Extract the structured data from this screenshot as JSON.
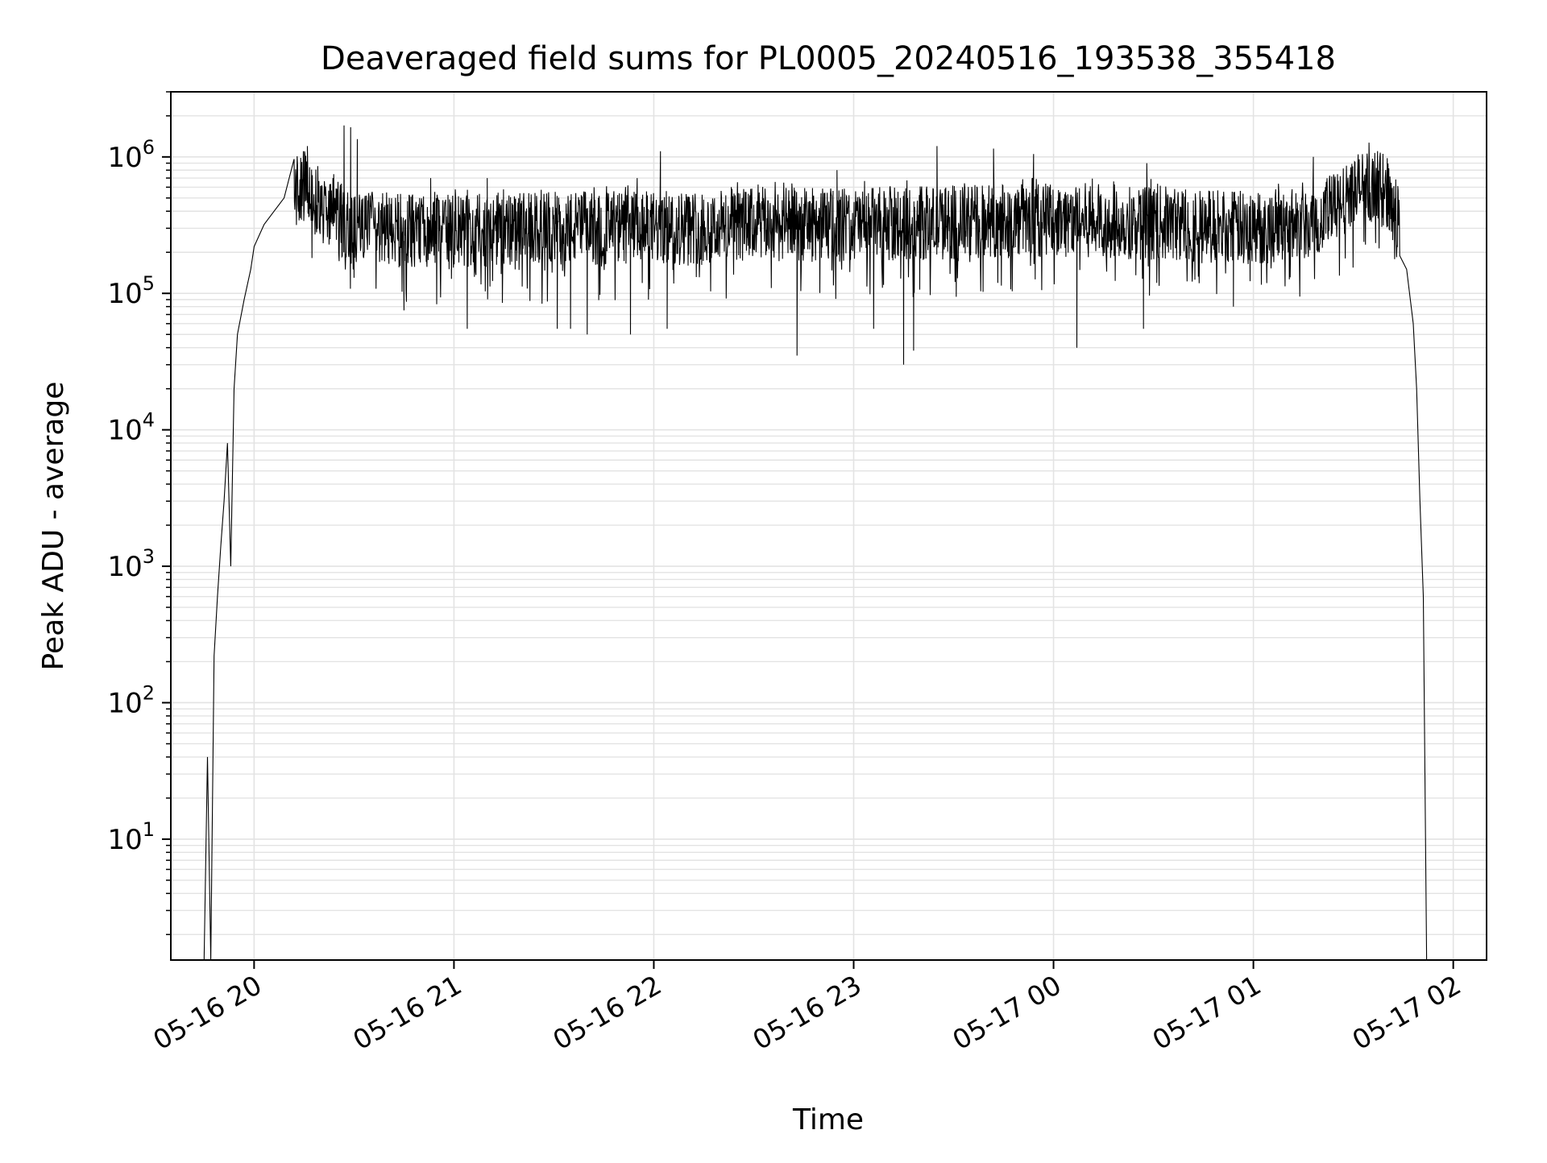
{
  "chart_data": {
    "type": "line",
    "title": "Deaveraged field sums for PL0005_20240516_193538_355418",
    "xlabel": "Time",
    "ylabel": "Peak ADU - average",
    "yscale": "log",
    "ylim": [
      1.3,
      3000000
    ],
    "xlim": [
      "2024-05-16 19:35",
      "2024-05-17 02:10"
    ],
    "grid": true,
    "grid_minor": true,
    "line_color": "#000000",
    "grid_color": "#e3e3e3",
    "x_ticks": [
      {
        "t": "2024-05-16 20:00",
        "label": "05-16 20"
      },
      {
        "t": "2024-05-16 21:00",
        "label": "05-16 21"
      },
      {
        "t": "2024-05-16 22:00",
        "label": "05-16 22"
      },
      {
        "t": "2024-05-16 23:00",
        "label": "05-16 23"
      },
      {
        "t": "2024-05-17 00:00",
        "label": "05-17 00"
      },
      {
        "t": "2024-05-17 01:00",
        "label": "05-17 01"
      },
      {
        "t": "2024-05-17 02:00",
        "label": "05-17 02"
      }
    ],
    "y_ticks": [
      {
        "v": 10,
        "base": "10",
        "exp": "1"
      },
      {
        "v": 100,
        "base": "10",
        "exp": "2"
      },
      {
        "v": 1000,
        "base": "10",
        "exp": "3"
      },
      {
        "v": 10000,
        "base": "10",
        "exp": "4"
      },
      {
        "v": 100000,
        "base": "10",
        "exp": "5"
      },
      {
        "v": 1000000,
        "base": "10",
        "exp": "6"
      }
    ],
    "series": [
      {
        "values": [
          [
            "2024-05-16 19:45",
            1.3
          ],
          [
            "2024-05-16 19:46",
            40
          ],
          [
            "2024-05-16 19:47",
            1.3
          ],
          [
            "2024-05-16 19:48",
            220
          ],
          [
            "2024-05-16 19:49",
            600
          ],
          [
            "2024-05-16 19:50",
            1400
          ],
          [
            "2024-05-16 19:51",
            3000
          ],
          [
            "2024-05-16 19:52",
            8000
          ],
          [
            "2024-05-16 19:53",
            1000
          ],
          [
            "2024-05-16 19:54",
            20000
          ],
          [
            "2024-05-16 19:55",
            50000
          ],
          [
            "2024-05-16 19:57",
            90000
          ],
          [
            "2024-05-16 19:59",
            150000
          ],
          [
            "2024-05-16 20:00",
            220000
          ],
          [
            "2024-05-16 20:03",
            320000
          ],
          [
            "2024-05-16 20:06",
            400000
          ],
          [
            "2024-05-16 20:09",
            500000
          ],
          [
            "2024-05-16 20:12",
            550000
          ],
          [
            "2024-05-16 20:15",
            600000
          ],
          [
            "2024-05-16 20:18",
            480000
          ],
          [
            "2024-05-16 20:22",
            400000
          ],
          [
            "2024-05-16 20:26",
            350000
          ],
          [
            "2024-05-16 20:30",
            300000
          ],
          [
            "2024-05-16 21:00",
            280000
          ],
          [
            "2024-05-16 21:30",
            300000
          ],
          [
            "2024-05-16 22:00",
            300000
          ],
          [
            "2024-05-16 22:30",
            320000
          ],
          [
            "2024-05-16 23:00",
            320000
          ],
          [
            "2024-05-16 23:30",
            330000
          ],
          [
            "2024-05-17 00:00",
            350000
          ],
          [
            "2024-05-17 00:30",
            330000
          ],
          [
            "2024-05-17 01:00",
            300000
          ],
          [
            "2024-05-17 01:15",
            330000
          ],
          [
            "2024-05-17 01:25",
            420000
          ],
          [
            "2024-05-17 01:30",
            550000
          ],
          [
            "2024-05-17 01:33",
            620000
          ],
          [
            "2024-05-17 01:37",
            600000
          ],
          [
            "2024-05-17 01:40",
            550000
          ],
          [
            "2024-05-17 01:42",
            450000
          ],
          [
            "2024-05-17 01:44",
            300000
          ],
          [
            "2024-05-17 01:46",
            150000
          ],
          [
            "2024-05-17 01:48",
            60000
          ],
          [
            "2024-05-17 01:49",
            20000
          ],
          [
            "2024-05-17 01:50",
            3000
          ],
          [
            "2024-05-17 01:51",
            600
          ],
          [
            "2024-05-17 01:52",
            1.3
          ]
        ],
        "noise": {
          "from": "2024-05-16 20:12",
          "to": "2024-05-17 01:44",
          "typical_range": [
            150000,
            700000
          ],
          "spikes_up": [
            [
              "2024-05-16 20:16",
              1200000
            ],
            [
              "2024-05-16 20:27",
              1700000
            ],
            [
              "2024-05-16 20:29",
              1650000
            ],
            [
              "2024-05-16 20:31",
              1350000
            ],
            [
              "2024-05-16 20:53",
              700000
            ],
            [
              "2024-05-16 21:10",
              700000
            ],
            [
              "2024-05-16 21:55",
              700000
            ],
            [
              "2024-05-16 22:02",
              1100000
            ],
            [
              "2024-05-16 22:55",
              800000
            ],
            [
              "2024-05-16 23:25",
              1200000
            ],
            [
              "2024-05-16 23:42",
              1150000
            ],
            [
              "2024-05-16 23:54",
              1050000
            ],
            [
              "2024-05-17 00:28",
              900000
            ],
            [
              "2024-05-17 01:18",
              1000000
            ]
          ],
          "spikes_down": [
            [
              "2024-05-16 20:30",
              130000
            ],
            [
              "2024-05-16 20:45",
              75000
            ],
            [
              "2024-05-16 21:04",
              55000
            ],
            [
              "2024-05-16 21:31",
              55000
            ],
            [
              "2024-05-16 21:35",
              55000
            ],
            [
              "2024-05-16 21:40",
              50000
            ],
            [
              "2024-05-16 21:53",
              50000
            ],
            [
              "2024-05-16 22:04",
              55000
            ],
            [
              "2024-05-16 22:43",
              35000
            ],
            [
              "2024-05-16 23:06",
              55000
            ],
            [
              "2024-05-16 23:15",
              30000
            ],
            [
              "2024-05-16 23:18",
              38000
            ],
            [
              "2024-05-17 00:07",
              40000
            ],
            [
              "2024-05-17 00:27",
              55000
            ],
            [
              "2024-05-17 00:54",
              80000
            ]
          ]
        }
      }
    ]
  }
}
